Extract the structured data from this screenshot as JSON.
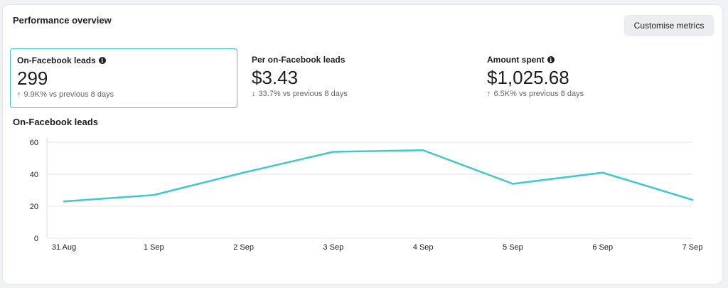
{
  "header": {
    "title": "Performance overview",
    "customise_label": "Customise metrics"
  },
  "metrics": [
    {
      "label": "On-Facebook leads",
      "has_info": true,
      "value": "299",
      "direction": "up",
      "change": "9.9K% vs previous 8 days",
      "selected": true
    },
    {
      "label": "Per on-Facebook leads",
      "has_info": false,
      "value": "$3.43",
      "direction": "down",
      "change": "33.7% vs previous 8 days",
      "selected": false
    },
    {
      "label": "Amount spent",
      "has_info": true,
      "value": "$1,025.68",
      "direction": "up",
      "change": "6.5K% vs previous 8 days",
      "selected": false
    }
  ],
  "icons": {
    "info": "info-icon",
    "up": "arrow-up-icon",
    "down": "arrow-down-icon"
  },
  "chart_data": {
    "type": "line",
    "title": "On-Facebook leads",
    "categories": [
      "31 Aug",
      "1 Sep",
      "2 Sep",
      "3 Sep",
      "4 Sep",
      "5 Sep",
      "6 Sep",
      "7 Sep"
    ],
    "series": [
      {
        "values": [
          23,
          27,
          41,
          54,
          55,
          34,
          41,
          24
        ]
      }
    ],
    "yticks": [
      0,
      20,
      40,
      60
    ],
    "ylim": [
      0,
      60
    ],
    "grid": true,
    "legend": "none",
    "line_color": "#3fc9cc"
  }
}
